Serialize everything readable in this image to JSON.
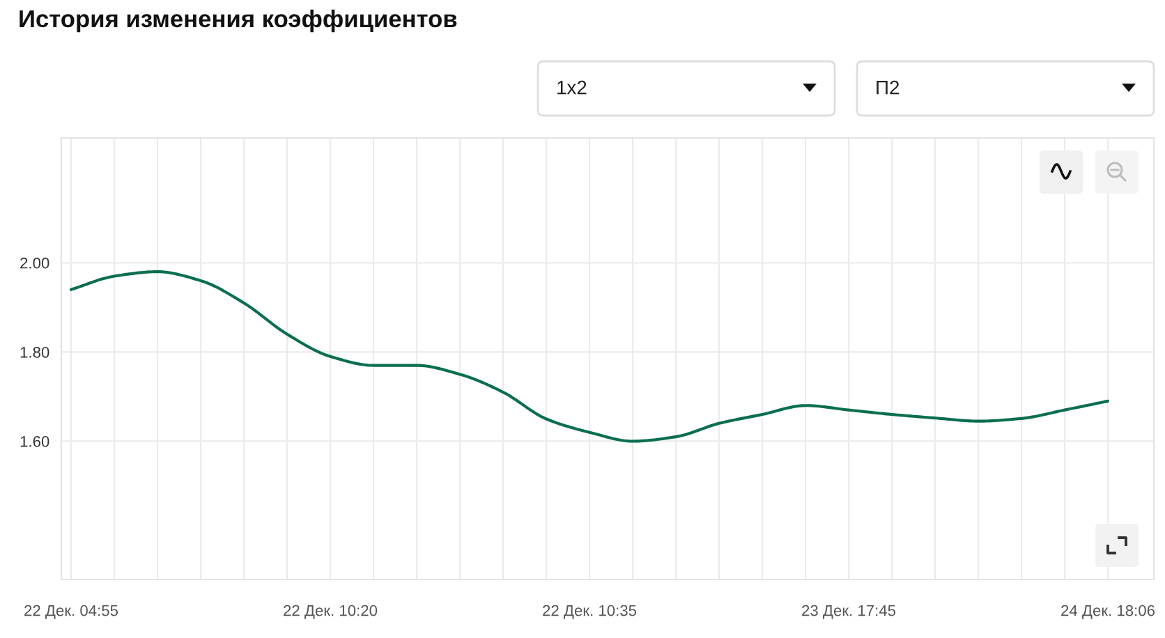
{
  "chart_data": {
    "type": "line",
    "title": "История изменения коэффициентов",
    "categories": [
      "22 Дек. 04:55",
      null,
      null,
      null,
      null,
      null,
      "22 Дек. 10:20",
      null,
      null,
      null,
      null,
      null,
      "22 Дек. 10:35",
      null,
      null,
      null,
      null,
      null,
      "23 Дек. 17:45",
      null,
      null,
      null,
      null,
      null,
      "24 Дек. 18:06"
    ],
    "series": [
      {
        "color": "#0b6e50",
        "values": [
          1.94,
          1.97,
          1.98,
          1.96,
          1.91,
          1.84,
          1.79,
          1.77,
          1.77,
          1.75,
          1.71,
          1.65,
          1.62,
          1.6,
          1.61,
          1.64,
          1.66,
          1.68,
          1.67,
          1.66,
          1.652,
          1.645,
          1.651,
          1.67,
          1.69
        ]
      }
    ],
    "ylim": [
      1.29,
      2.28
    ],
    "yticks": [
      {
        "value": 1.6,
        "label": "1.60"
      },
      {
        "value": 1.8,
        "label": "1.80"
      },
      {
        "value": 2.0,
        "label": "2.00"
      }
    ],
    "grid": true,
    "annotations": [
      "1x2",
      "П2"
    ]
  }
}
